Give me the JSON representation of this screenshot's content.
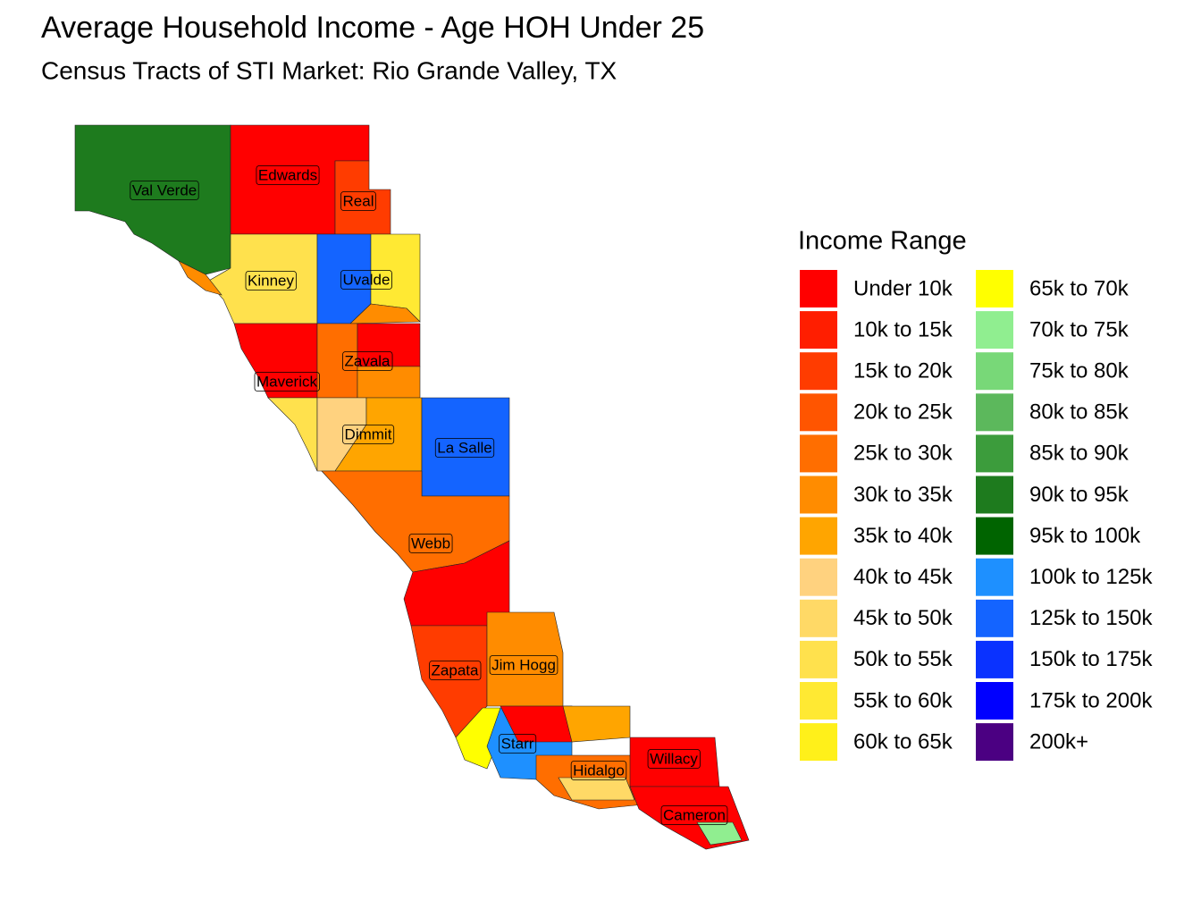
{
  "title": "Average Household Income - Age HOH Under 25",
  "subtitle": "Census Tracts of STI Market: Rio Grande Valley, TX",
  "legend": {
    "title": "Income Range",
    "items": [
      {
        "label": "Under 10k",
        "color": "#ff0000"
      },
      {
        "label": "10k to 15k",
        "color": "#ff1e00"
      },
      {
        "label": "15k to 20k",
        "color": "#ff3c00"
      },
      {
        "label": "20k to 25k",
        "color": "#ff5500"
      },
      {
        "label": "25k to 30k",
        "color": "#ff6e00"
      },
      {
        "label": "30k to 35k",
        "color": "#ff8c00"
      },
      {
        "label": "35k to 40k",
        "color": "#ffa500"
      },
      {
        "label": "40k to 45k",
        "color": "#ffd27f"
      },
      {
        "label": "45k to 50k",
        "color": "#ffd966"
      },
      {
        "label": "50k to 55k",
        "color": "#ffe14d"
      },
      {
        "label": "55k to 60k",
        "color": "#ffe933"
      },
      {
        "label": "60k to 65k",
        "color": "#fff01a"
      },
      {
        "label": "65k to 70k",
        "color": "#ffff00"
      },
      {
        "label": "70k to 75k",
        "color": "#90ee90"
      },
      {
        "label": "75k to 80k",
        "color": "#78d878"
      },
      {
        "label": "80k to 85k",
        "color": "#5cb85c"
      },
      {
        "label": "85k to 90k",
        "color": "#3c9c3c"
      },
      {
        "label": "90k to 95k",
        "color": "#1e7b1e"
      },
      {
        "label": "95k to 100k",
        "color": "#006400"
      },
      {
        "label": "100k to 125k",
        "color": "#1e90ff"
      },
      {
        "label": "125k to 150k",
        "color": "#1464ff"
      },
      {
        "label": "150k to 175k",
        "color": "#0a32ff"
      },
      {
        "label": "175k to 200k",
        "color": "#0000ff"
      },
      {
        "label": "200k+",
        "color": "#4b0082"
      }
    ]
  },
  "counties": [
    {
      "name": "Val Verde"
    },
    {
      "name": "Edwards"
    },
    {
      "name": "Real"
    },
    {
      "name": "Kinney"
    },
    {
      "name": "Uvalde"
    },
    {
      "name": "Zavala"
    },
    {
      "name": "Maverick"
    },
    {
      "name": "Dimmit"
    },
    {
      "name": "La Salle"
    },
    {
      "name": "Webb"
    },
    {
      "name": "Zapata"
    },
    {
      "name": "Jim Hogg"
    },
    {
      "name": "Starr"
    },
    {
      "name": "Hidalgo"
    },
    {
      "name": "Willacy"
    },
    {
      "name": "Cameron"
    }
  ]
}
